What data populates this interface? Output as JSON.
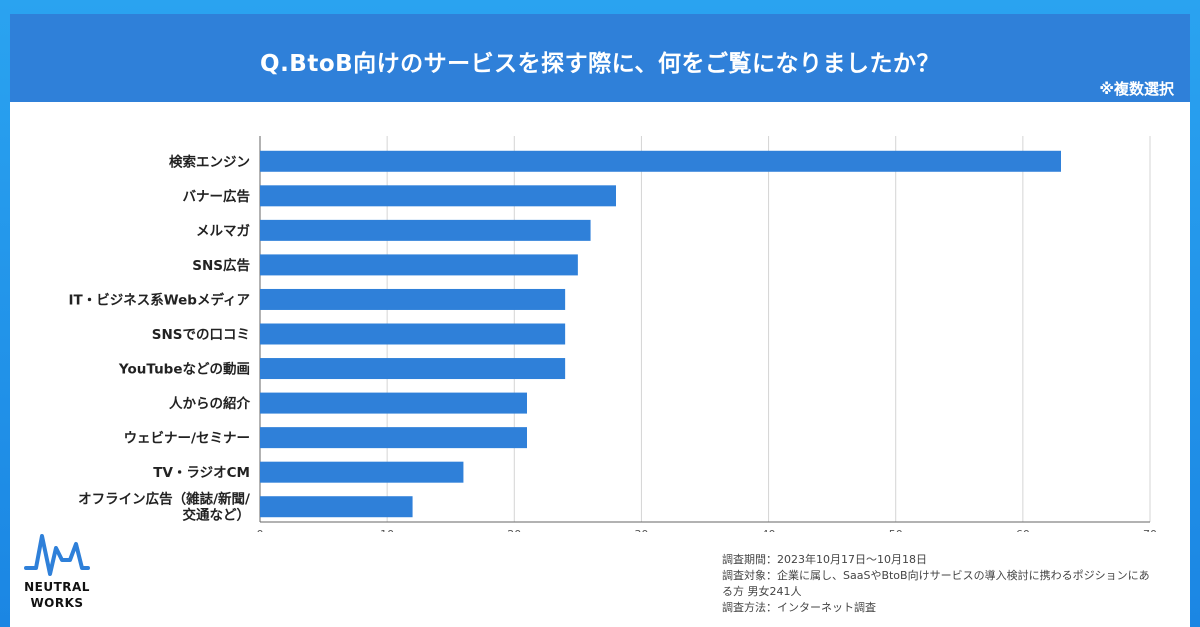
{
  "header": {
    "title": "Q.BtoB向けのサービスを探す際に、何をご覧になりましたか？",
    "multi_note": "※複数選択"
  },
  "chart_data": {
    "type": "bar",
    "orientation": "horizontal",
    "categories": [
      "検索エンジン",
      "バナー広告",
      "メルマガ",
      "SNS広告",
      "IT・ビジネス系Webメディア",
      "SNSでの口コミ",
      "YouTubeなどの動画",
      "人からの紹介",
      "ウェビナー/セミナー",
      "TV・ラジオCM",
      "オフライン広告（雑誌/新聞/交通など）"
    ],
    "category_lines": [
      [
        "検索エンジン"
      ],
      [
        "バナー広告"
      ],
      [
        "メルマガ"
      ],
      [
        "SNS広告"
      ],
      [
        "IT・ビジネス系Webメディア"
      ],
      [
        "SNSでの口コミ"
      ],
      [
        "YouTubeなどの動画"
      ],
      [
        "人からの紹介"
      ],
      [
        "ウェビナー/セミナー"
      ],
      [
        "TV・ラジオCM"
      ],
      [
        "オフライン広告（雑誌/新聞/",
        "交通など）"
      ]
    ],
    "values": [
      63,
      28,
      26,
      25,
      24,
      24,
      24,
      21,
      21,
      16,
      12
    ],
    "xlim": [
      0,
      70
    ],
    "xticks": [
      0,
      10,
      20,
      30,
      40,
      50,
      60,
      70
    ],
    "grid": true,
    "bar_color": "#2f80d9"
  },
  "logo": {
    "line1": "NEUTRAL",
    "line2": "WORKS",
    "accent_color": "#2f80d9"
  },
  "notes": {
    "period": "調査期間：2023年10月17日〜10月18日",
    "target_line1": "調査対象：企業に属し、SaaSやBtoB向けサービスの導入検討に携わるポジションにあ",
    "target_line2": "る方 男女241人",
    "method": "調査方法：インターネット調査"
  }
}
